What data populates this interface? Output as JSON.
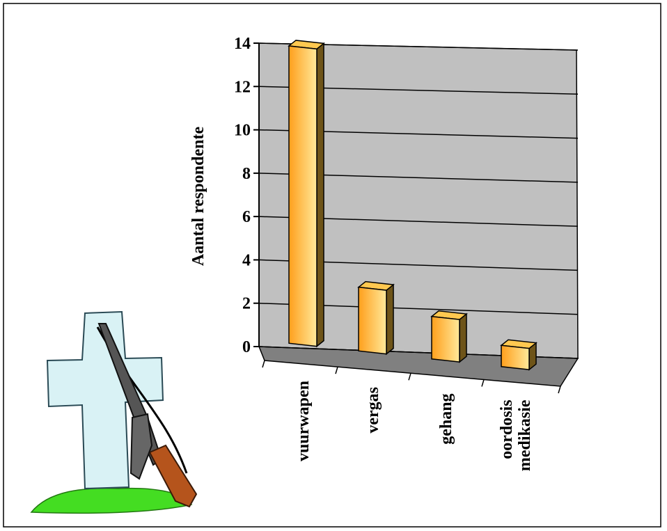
{
  "chart_data": {
    "type": "bar3d",
    "y_label": "Aantal respondente",
    "categories": [
      "vuurwapen",
      "vergas",
      "gehang",
      "oordosis medikasie"
    ],
    "values": [
      14,
      3,
      2,
      1
    ],
    "color": "#ff9f1c",
    "ylim": [
      0,
      14
    ],
    "yticks": [
      0,
      2,
      4,
      6,
      8,
      10,
      12,
      14
    ],
    "grid": true
  }
}
